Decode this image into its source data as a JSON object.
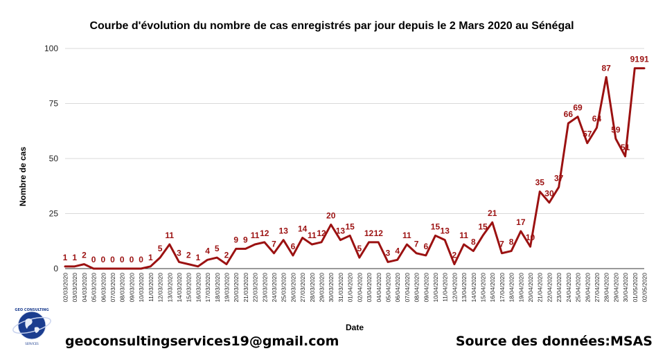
{
  "chart_data": {
    "type": "line",
    "title": "Courbe d'évolution du nombre de cas enregistrés par jour depuis le 2 Mars 2020 au Sénégal",
    "xlabel": "Date",
    "ylabel": "Nombre de cas",
    "ylim": [
      0,
      100
    ],
    "yticks": [
      0,
      25,
      50,
      75,
      100
    ],
    "grid": "horizontal",
    "line_color": "#9b1111",
    "categories": [
      "02/03/2020",
      "03/03/2020",
      "04/03/2020",
      "05/03/2020",
      "06/03/2020",
      "07/03/2020",
      "08/03/2020",
      "09/03/2020",
      "10/03/2020",
      "11/03/2020",
      "12/03/2020",
      "13/03/2020",
      "14/03/2020",
      "15/03/2020",
      "16/03/2020",
      "17/03/2020",
      "18/03/2020",
      "19/03/2020",
      "20/03/2020",
      "21/03/2020",
      "22/03/2020",
      "23/03/2020",
      "24/03/2020",
      "25/03/2020",
      "26/03/2020",
      "27/03/2020",
      "28/03/2020",
      "29/03/2020",
      "30/03/2020",
      "31/03/2020",
      "01/04/2020",
      "02/04/2020",
      "03/04/2020",
      "04/04/2020",
      "05/04/2020",
      "06/04/2020",
      "07/04/2020",
      "08/04/2020",
      "09/04/2020",
      "10/04/2020",
      "11/04/2020",
      "12/04/2020",
      "13/04/2020",
      "14/04/2020",
      "15/04/2020",
      "16/04/2020",
      "17/04/2020",
      "18/04/2020",
      "19/04/2020",
      "20/04/2020",
      "21/04/2020",
      "22/04/2020",
      "23/04/2020",
      "24/04/2020",
      "25/04/2020",
      "26/04/2020",
      "27/04/2020",
      "28/04/2020",
      "29/04/2020",
      "30/04/2020",
      "01/05/2020",
      "02/05/2020"
    ],
    "values": [
      1,
      1,
      2,
      0,
      0,
      0,
      0,
      0,
      0,
      1,
      5,
      11,
      3,
      2,
      1,
      4,
      5,
      2,
      9,
      9,
      11,
      12,
      7,
      13,
      6,
      14,
      11,
      12,
      20,
      13,
      15,
      5,
      12,
      12,
      3,
      4,
      11,
      7,
      6,
      15,
      13,
      2,
      11,
      8,
      15,
      21,
      7,
      8,
      17,
      10,
      35,
      30,
      37,
      66,
      69,
      57,
      64,
      87,
      59,
      51,
      91,
      91
    ],
    "labels": [
      "1",
      "1",
      "2",
      "0",
      "0",
      "0",
      "0",
      "0",
      "0",
      "1",
      "5",
      "11",
      "3",
      "2",
      "1",
      "4",
      "5",
      "2",
      "9",
      "9",
      "11",
      "12",
      "7",
      "13",
      "6",
      "14",
      "11",
      "12",
      "20",
      "13",
      "15",
      "5",
      "12",
      "12",
      "3",
      "4",
      "11",
      "7",
      "6",
      "15",
      "13",
      "2",
      "11",
      "8",
      "15",
      "21",
      "7",
      "8",
      "17",
      "10",
      "35",
      "30",
      "37",
      "66",
      "69",
      "57",
      "64",
      "87",
      "59",
      "51",
      "91",
      "91"
    ]
  },
  "footer": {
    "email": "geoconsultingservices19@gmail.com",
    "source": "Source des données:MSAS"
  },
  "logo": {
    "text_top": "GEO CONSULTING SERVICES",
    "text_bottom": "Géographie · Analyse · SIG"
  }
}
